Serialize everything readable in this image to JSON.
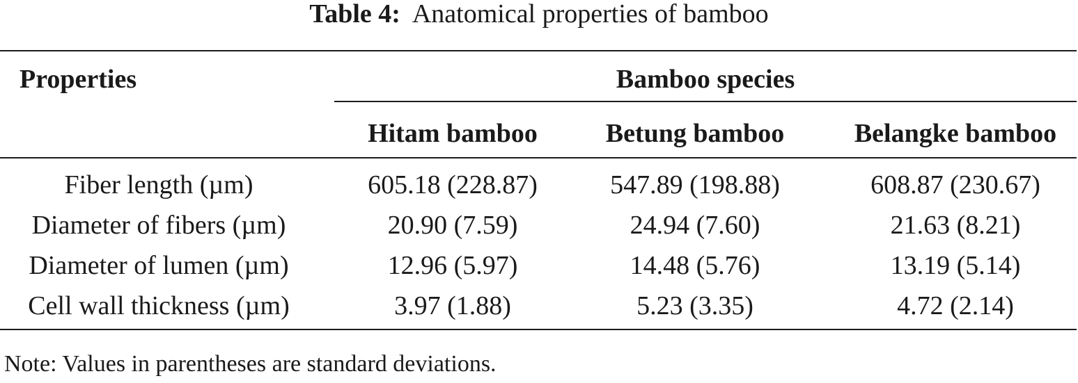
{
  "caption": {
    "label": "Table 4:",
    "text": "Anatomical properties of bamboo"
  },
  "table": {
    "stub_header": "Properties",
    "group_header": "Bamboo species",
    "columns": [
      "Hitam bamboo",
      "Betung bamboo",
      "Belangke bamboo"
    ],
    "rows": [
      {
        "property": "Fiber length (µm)",
        "values": [
          "605.18 (228.87)",
          "547.89 (198.88)",
          "608.87 (230.67)"
        ]
      },
      {
        "property": "Diameter of fibers (µm)",
        "values": [
          "20.90 (7.59)",
          "24.94 (7.60)",
          "21.63 (8.21)"
        ]
      },
      {
        "property": "Diameter of lumen (µm)",
        "values": [
          "12.96 (5.97)",
          "14.48 (5.76)",
          "13.19 (5.14)"
        ]
      },
      {
        "property": "Cell wall thickness (µm)",
        "values": [
          "3.97 (1.88)",
          "5.23 (3.35)",
          "4.72 (2.14)"
        ]
      }
    ]
  },
  "note": "Note: Values in parentheses are standard deviations."
}
